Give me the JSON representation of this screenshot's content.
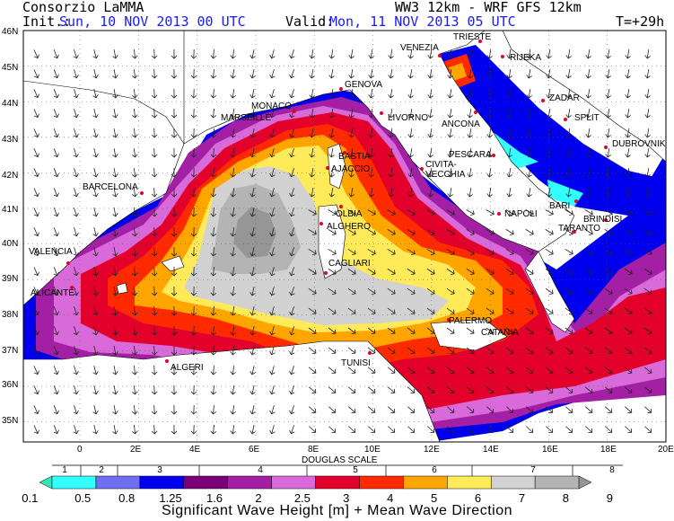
{
  "header": {
    "org": "Consorzio LaMMA",
    "model": "WW3 12km - WRF GFS 12km",
    "init_label": "Init.:",
    "init_value": "Sun, 10 NOV 2013  00 UTC",
    "valid_label": "Valid:",
    "valid_value": "Mon, 11 NOV 2013  05 UTC",
    "lead": "T=+29h"
  },
  "axes": {
    "lat_labels": [
      "46N",
      "45N",
      "44N",
      "43N",
      "42N",
      "41N",
      "40N",
      "39N",
      "38N",
      "37N",
      "36N",
      "35N"
    ],
    "lon_labels": [
      "0",
      "2E",
      "4E",
      "6E",
      "8E",
      "10E",
      "12E",
      "14E",
      "16E",
      "18E",
      "20E"
    ]
  },
  "cities": [
    "TRIESTE",
    "VENEZIA",
    "RIJEKA",
    "GENOVA",
    "MONACO",
    "MARSEILLE",
    "LIVORNO",
    "ANCONA",
    "ZADAR",
    "SPLIT",
    "DUBROVNIK",
    "BASTIA",
    "AJACCIO",
    "CIVITA-",
    "VECCHIA",
    "PESCARA",
    "BARCELONA",
    "OLBIA",
    "ALGHERO",
    "NAPOLI",
    "BARI",
    "BRINDISI",
    "TARANTO",
    "VALENCIA",
    "CAGLIARI",
    "ALICANTE",
    "PALERMO",
    "CATANIA",
    "TUNISI",
    "ALGERI"
  ],
  "legend": {
    "douglas_title": "DOUGLAS SCALE",
    "douglas": [
      "1",
      "2",
      "3",
      "4",
      "5",
      "6",
      "7",
      "8"
    ],
    "values": [
      "0.1",
      "0.5",
      "0.8",
      "1.25",
      "1.6",
      "2",
      "2.5",
      "3",
      "4",
      "5",
      "6",
      "7",
      "8",
      "9"
    ],
    "colors": [
      "#33e6b3",
      "#33ffff",
      "#6f6ff2",
      "#0000ee",
      "#7a007a",
      "#a31fa3",
      "#d96ad9",
      "#e3002a",
      "#ff2a00",
      "#ffa500",
      "#ffeb5a",
      "#d2d2d2",
      "#b4b4b4",
      "#969696"
    ],
    "title": "Significant Wave Height [m] + Mean Wave Direction"
  }
}
